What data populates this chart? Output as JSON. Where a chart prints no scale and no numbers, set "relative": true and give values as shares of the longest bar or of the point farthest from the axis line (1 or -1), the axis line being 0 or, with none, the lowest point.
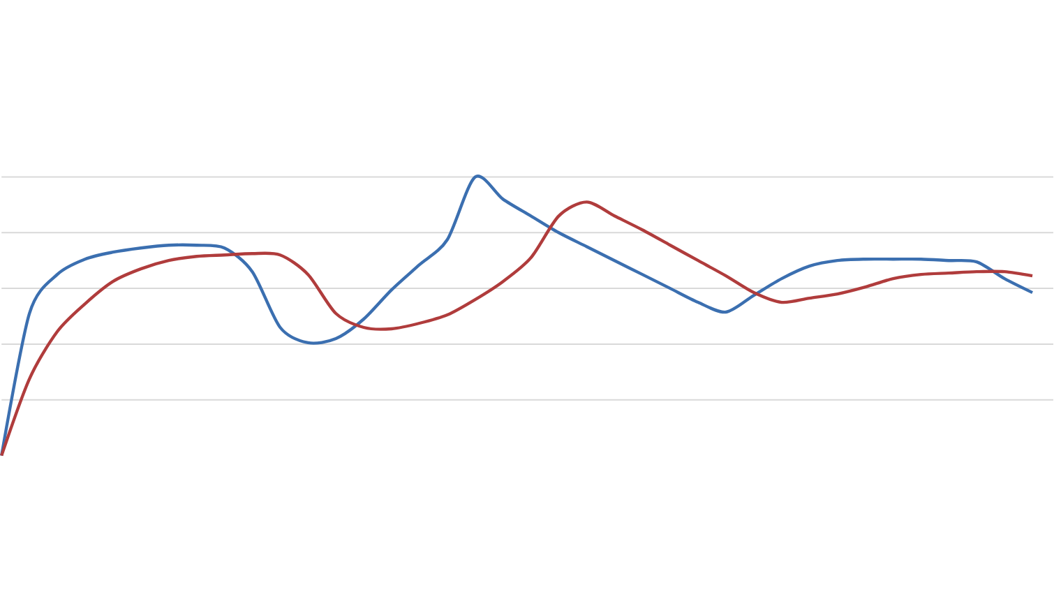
{
  "chart_data": {
    "type": "line",
    "relative": true,
    "grid": "y",
    "categories": [
      null,
      null,
      null,
      null,
      null,
      null,
      null,
      null,
      null,
      null,
      null,
      null,
      null,
      null,
      null,
      null,
      null,
      null,
      null,
      null,
      null,
      null,
      null,
      null,
      null,
      null,
      null,
      null,
      null,
      null,
      null,
      null,
      null,
      null,
      null,
      null,
      null,
      null
    ],
    "series": [
      {
        "color": "#3b6fb0",
        "values": [
          0,
          0.51,
          0.65,
          0.705,
          0.73,
          0.745,
          0.755,
          0.755,
          0.745,
          0.66,
          0.46,
          0.405,
          0.42,
          0.49,
          0.595,
          0.685,
          0.775,
          1,
          0.92,
          0.86,
          0.8,
          0.75,
          0.7,
          0.65,
          0.6,
          0.55,
          0.515,
          0.575,
          0.635,
          0.68,
          0.7,
          0.705,
          0.705,
          0.705,
          0.7,
          0.695,
          0.635,
          0.585
        ]
      },
      {
        "color": "#b03c3c",
        "values": [
          0,
          0.275,
          0.445,
          0.545,
          0.625,
          0.67,
          0.7,
          0.715,
          0.72,
          0.725,
          0.72,
          0.65,
          0.51,
          0.46,
          0.455,
          0.475,
          0.505,
          0.56,
          0.625,
          0.71,
          0.86,
          0.91,
          0.86,
          0.81,
          0.755,
          0.7,
          0.645,
          0.585,
          0.55,
          0.565,
          0.58,
          0.605,
          0.635,
          0.65,
          0.655,
          0.66,
          0.66,
          0.645
        ]
      }
    ]
  }
}
